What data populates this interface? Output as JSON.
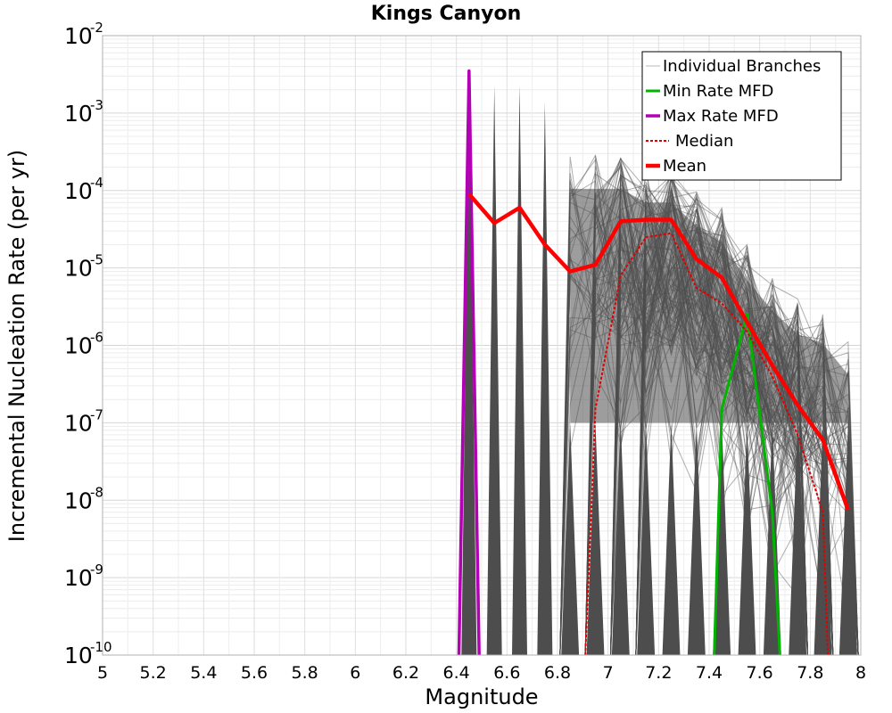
{
  "chart_data": {
    "type": "line",
    "title": "Kings Canyon",
    "xlabel": "Magnitude",
    "ylabel": "Incremental Nucleation Rate (per yr)",
    "xlim": [
      5,
      8
    ],
    "ylim": [
      1e-10,
      0.01
    ],
    "y_scale": "log",
    "grid": true,
    "legend_position": "top-right",
    "x_ticks": [
      "5",
      "5.2",
      "5.4",
      "5.6",
      "5.8",
      "6",
      "6.2",
      "6.4",
      "6.6",
      "6.8",
      "7",
      "7.2",
      "7.4",
      "7.6",
      "7.8",
      "8"
    ],
    "y_ticks": [
      {
        "base": "10",
        "exp": "-10"
      },
      {
        "base": "10",
        "exp": "-9"
      },
      {
        "base": "10",
        "exp": "-8"
      },
      {
        "base": "10",
        "exp": "-7"
      },
      {
        "base": "10",
        "exp": "-6"
      },
      {
        "base": "10",
        "exp": "-5"
      },
      {
        "base": "10",
        "exp": "-4"
      },
      {
        "base": "10",
        "exp": "-3"
      },
      {
        "base": "10",
        "exp": "-2"
      }
    ],
    "colors": {
      "individual": "#4d4d4d",
      "min": "#00b400",
      "max": "#b400b4",
      "median": "#e00000",
      "mean": "#ff0000"
    },
    "series": [
      {
        "name": "Individual Branches",
        "style": "thin-gray",
        "spike_envelope": {
          "x": [
            6.45,
            6.55,
            6.65,
            6.75
          ],
          "y": [
            0.0025,
            0.0023,
            0.0023,
            0.0014
          ]
        },
        "upper_envelope": {
          "x": [
            6.85,
            6.95,
            7.05,
            7.15,
            7.25,
            7.35,
            7.45,
            7.55,
            7.65,
            7.75,
            7.85,
            7.95
          ],
          "y": [
            0.0003,
            0.0003,
            0.0003,
            0.0002,
            0.0002,
            0.0001,
            6e-05,
            2e-05,
            8e-06,
            4e-06,
            3e-06,
            1.2e-06
          ]
        }
      },
      {
        "name": "Min Rate MFD",
        "style": "solid-green",
        "x": [
          7.42,
          7.45,
          7.55,
          7.65,
          7.68
        ],
        "y": [
          1e-10,
          1.5e-07,
          2.5e-06,
          7e-09,
          1e-10
        ]
      },
      {
        "name": "Max Rate MFD",
        "style": "solid-magenta",
        "x": [
          6.41,
          6.45,
          6.49
        ],
        "y": [
          1e-10,
          0.0035,
          1e-10
        ]
      },
      {
        "name": "Median",
        "style": "dotted-red",
        "x": [
          6.91,
          6.95,
          7.05,
          7.15,
          7.25,
          7.35,
          7.45,
          7.55,
          7.65,
          7.75,
          7.85,
          7.87
        ],
        "y": [
          1e-10,
          1.5e-07,
          8e-06,
          2.5e-05,
          2.8e-05,
          5.5e-06,
          3.5e-06,
          1.5e-06,
          4e-07,
          7e-08,
          7e-09,
          1e-10
        ]
      },
      {
        "name": "Mean",
        "style": "thick-red",
        "x": [
          6.45,
          6.55,
          6.65,
          6.75,
          6.85,
          6.95,
          7.05,
          7.15,
          7.25,
          7.35,
          7.45,
          7.55,
          7.65,
          7.75,
          7.85,
          7.95
        ],
        "y": [
          9e-05,
          3.8e-05,
          6e-05,
          2e-05,
          9e-06,
          1.1e-05,
          4e-05,
          4.2e-05,
          4.2e-05,
          1.3e-05,
          7.5e-06,
          2e-06,
          5.5e-07,
          1.7e-07,
          6e-08,
          7.5e-09
        ]
      }
    ]
  }
}
